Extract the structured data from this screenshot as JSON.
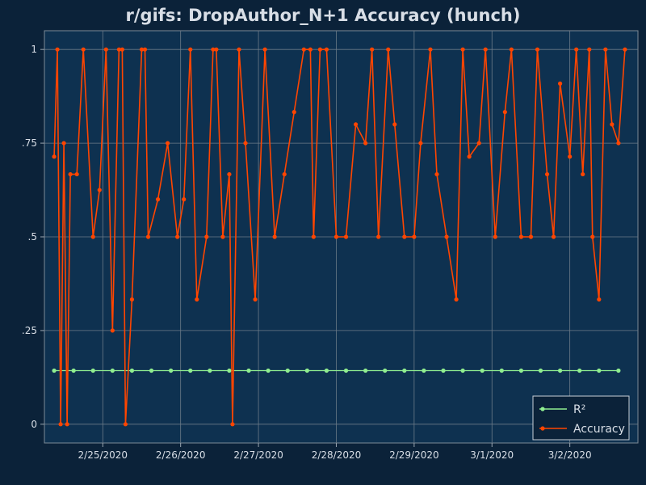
{
  "chart_data": {
    "type": "line",
    "title": "r/gifs: DropAuthor_N+1 Accuracy (hunch)",
    "xlabel": "",
    "ylabel": "",
    "xlim": [
      "2020-02-24T06:00",
      "2020-03-02T21:00"
    ],
    "ylim": [
      -0.05,
      1.05
    ],
    "x_ticks": [
      {
        "value": "2020-02-25",
        "label": "2/25/2020"
      },
      {
        "value": "2020-02-26",
        "label": "2/26/2020"
      },
      {
        "value": "2020-02-27",
        "label": "2/27/2020"
      },
      {
        "value": "2020-02-28",
        "label": "2/28/2020"
      },
      {
        "value": "2020-02-29",
        "label": "2/29/2020"
      },
      {
        "value": "2020-03-01",
        "label": "3/1/2020"
      },
      {
        "value": "2020-03-02",
        "label": "3/2/2020"
      }
    ],
    "y_ticks": [
      {
        "value": 0,
        "label": "0"
      },
      {
        "value": 0.25,
        "label": ".25"
      },
      {
        "value": 0.5,
        "label": ".5"
      },
      {
        "value": 0.75,
        "label": ".75"
      },
      {
        "value": 1,
        "label": "1"
      }
    ],
    "grid": true,
    "legend_position": "bottom-right",
    "series": [
      {
        "name": "R²",
        "color": "#90ee90",
        "marker": "circle",
        "x": [
          "2020-02-24T09:00",
          "2020-02-24T15:00",
          "2020-02-24T21:00",
          "2020-02-25T03:00",
          "2020-02-25T09:00",
          "2020-02-25T15:00",
          "2020-02-25T21:00",
          "2020-02-26T03:00",
          "2020-02-26T09:00",
          "2020-02-26T15:00",
          "2020-02-26T21:00",
          "2020-02-27T03:00",
          "2020-02-27T09:00",
          "2020-02-27T15:00",
          "2020-02-27T21:00",
          "2020-02-28T03:00",
          "2020-02-28T09:00",
          "2020-02-28T15:00",
          "2020-02-28T21:00",
          "2020-02-29T03:00",
          "2020-02-29T09:00",
          "2020-02-29T15:00",
          "2020-02-29T21:00",
          "2020-03-01T03:00",
          "2020-03-01T09:00",
          "2020-03-01T15:00",
          "2020-03-01T21:00",
          "2020-03-02T03:00",
          "2020-03-02T09:00",
          "2020-03-02T15:00"
        ],
        "y": [
          0.143,
          0.143,
          0.143,
          0.143,
          0.143,
          0.143,
          0.143,
          0.143,
          0.143,
          0.143,
          0.143,
          0.143,
          0.143,
          0.143,
          0.143,
          0.143,
          0.143,
          0.143,
          0.143,
          0.143,
          0.143,
          0.143,
          0.143,
          0.143,
          0.143,
          0.143,
          0.143,
          0.143,
          0.143,
          0.143
        ]
      },
      {
        "name": "Accuracy",
        "color": "#ff4500",
        "marker": "circle",
        "x": [
          "2020-02-24T09:00",
          "2020-02-24T10:00",
          "2020-02-24T11:00",
          "2020-02-24T12:00",
          "2020-02-24T13:00",
          "2020-02-24T14:00",
          "2020-02-24T16:00",
          "2020-02-24T18:00",
          "2020-02-24T21:00",
          "2020-02-24T23:00",
          "2020-02-25T01:00",
          "2020-02-25T03:00",
          "2020-02-25T05:00",
          "2020-02-25T06:00",
          "2020-02-25T07:00",
          "2020-02-25T09:00",
          "2020-02-25T12:00",
          "2020-02-25T13:00",
          "2020-02-25T14:00",
          "2020-02-25T17:00",
          "2020-02-25T20:00",
          "2020-02-25T23:00",
          "2020-02-26T01:00",
          "2020-02-26T03:00",
          "2020-02-26T05:00",
          "2020-02-26T08:00",
          "2020-02-26T10:00",
          "2020-02-26T11:00",
          "2020-02-26T13:00",
          "2020-02-26T15:00",
          "2020-02-26T16:00",
          "2020-02-26T18:00",
          "2020-02-26T20:00",
          "2020-02-26T23:00",
          "2020-02-27T02:00",
          "2020-02-27T05:00",
          "2020-02-27T08:00",
          "2020-02-27T11:00",
          "2020-02-27T14:00",
          "2020-02-27T16:00",
          "2020-02-27T17:00",
          "2020-02-27T19:00",
          "2020-02-27T21:00",
          "2020-02-28T00:00",
          "2020-02-28T03:00",
          "2020-02-28T06:00",
          "2020-02-28T09:00",
          "2020-02-28T11:00",
          "2020-02-28T13:00",
          "2020-02-28T16:00",
          "2020-02-28T18:00",
          "2020-02-28T21:00",
          "2020-02-29T00:00",
          "2020-02-29T02:00",
          "2020-02-29T05:00",
          "2020-02-29T07:00",
          "2020-02-29T10:00",
          "2020-02-29T13:00",
          "2020-02-29T15:00",
          "2020-02-29T17:00",
          "2020-02-29T20:00",
          "2020-02-29T22:00",
          "2020-03-01T01:00",
          "2020-03-01T04:00",
          "2020-03-01T06:00",
          "2020-03-01T09:00",
          "2020-03-01T12:00",
          "2020-03-01T14:00",
          "2020-03-01T17:00",
          "2020-03-01T19:00",
          "2020-03-01T21:00",
          "2020-03-02T00:00",
          "2020-03-02T02:00",
          "2020-03-02T04:00",
          "2020-03-02T06:00",
          "2020-03-02T07:00",
          "2020-03-02T09:00",
          "2020-03-02T11:00",
          "2020-03-02T13:00",
          "2020-03-02T15:00",
          "2020-03-02T17:00"
        ],
        "y": [
          0.714,
          1,
          0,
          0.75,
          0,
          0.667,
          0.667,
          1,
          0.5,
          0.625,
          1,
          0.25,
          1,
          1,
          0,
          0.333,
          1,
          1,
          0.5,
          0.6,
          0.75,
          0.5,
          0.6,
          1,
          0.333,
          0.5,
          1,
          1,
          0.5,
          0.667,
          0,
          1,
          0.75,
          0.333,
          1,
          0.5,
          0.667,
          0.833,
          1,
          1,
          0.5,
          1,
          1,
          0.5,
          0.5,
          0.8,
          0.75,
          1,
          0.5,
          1,
          0.8,
          0.5,
          0.5,
          0.75,
          1,
          0.667,
          0.5,
          0.333,
          1,
          0.714,
          0.75,
          1,
          0.5,
          0.833,
          1,
          0.5,
          0.5,
          1,
          0.667,
          0.5,
          0.909,
          0.714,
          1,
          0.667,
          1,
          0.5,
          0.333,
          1,
          0.8,
          0.75,
          1
        ]
      }
    ]
  }
}
